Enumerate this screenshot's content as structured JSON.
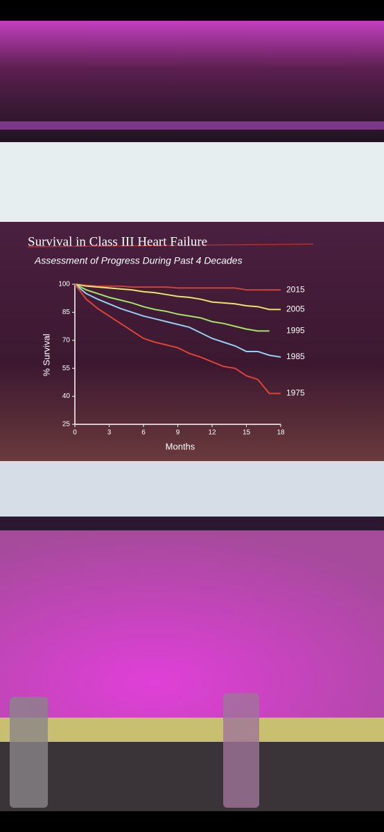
{
  "chart_data": {
    "type": "line",
    "title": "Survival in Class III Heart Failure",
    "subtitle": "Assessment of Progress During Past 4 Decades",
    "x_label": "Months",
    "y_label": "% Survival",
    "x": [
      0,
      1,
      2,
      3,
      4,
      5,
      6,
      7,
      8,
      9,
      10,
      11,
      12,
      13,
      14,
      15,
      16,
      17,
      18
    ],
    "xlim": [
      0,
      18
    ],
    "xticks": [
      0,
      3,
      6,
      9,
      12,
      15,
      18
    ],
    "ylim": [
      25,
      100
    ],
    "yticks": [
      25,
      40,
      55,
      70,
      85,
      100
    ],
    "series": [
      {
        "name": "2015",
        "color": "#c8453a",
        "values": [
          100,
          99.5,
          99,
          99,
          99,
          98.5,
          98.5,
          98.5,
          98.5,
          98,
          98,
          98,
          98,
          98,
          98,
          97,
          97,
          97,
          97
        ]
      },
      {
        "name": "2005",
        "color": "#ece46a",
        "values": [
          100,
          99,
          98.5,
          98,
          97.5,
          97,
          96,
          95.5,
          94.5,
          93.5,
          93,
          92,
          90.5,
          90,
          89.5,
          88.5,
          88,
          86.5,
          86.5
        ]
      },
      {
        "name": "1995",
        "color": "#a4e46a",
        "values": [
          100,
          97,
          95,
          93,
          91.5,
          90,
          88,
          86.5,
          85.5,
          84,
          83,
          82,
          80,
          79,
          77.5,
          76,
          75,
          75,
          null
        ]
      },
      {
        "name": "1985",
        "color": "#96cff2",
        "values": [
          100,
          95,
          92,
          89.5,
          87,
          85,
          83,
          81.5,
          80,
          78.5,
          77,
          74,
          71,
          69,
          67,
          64,
          64,
          62,
          61
        ]
      },
      {
        "name": "1975",
        "color": "#dc4438",
        "values": [
          100,
          92,
          87,
          83,
          79,
          75,
          71,
          69,
          67.5,
          66,
          63,
          61,
          58.5,
          56,
          55,
          51,
          49,
          41.5,
          41.5
        ]
      }
    ]
  }
}
